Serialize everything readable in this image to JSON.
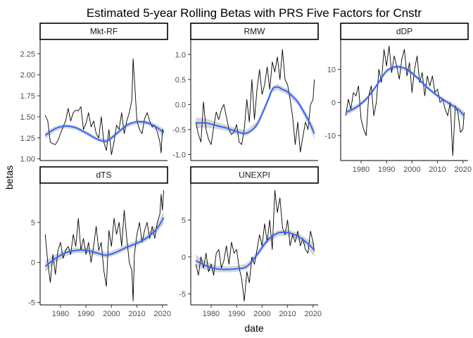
{
  "figure": {
    "title": "Estimated 5-year Rolling Betas with PRS Five Factors for Cnstr",
    "xlabel": "date",
    "ylabel": "betas",
    "colors": {
      "raw_line": "#000000",
      "smooth_line": "#3366ff",
      "confidence_band": "#c8c8c8",
      "strip_fill": "#ffffff",
      "axis": "#333333"
    }
  },
  "chart_data": [
    {
      "type": "line",
      "panel": "Mkt-RF",
      "xlim": [
        1972,
        2022
      ],
      "ylim": [
        0.98,
        2.42
      ],
      "x_ticks": [],
      "y_ticks": [
        1.0,
        1.25,
        1.5,
        1.75,
        2.0,
        2.25
      ],
      "y_tick_labels": [
        "1.00",
        "1.25",
        "1.50",
        "1.75",
        "2.00",
        "2.25"
      ],
      "raw": {
        "x": [
          1974.0,
          1975.0,
          1976.0,
          1977.0,
          1978.0,
          1979.0,
          1980.0,
          1981.0,
          1982.0,
          1983.0,
          1984.0,
          1985.0,
          1986.0,
          1987.0,
          1988.0,
          1989.0,
          1990.0,
          1991.0,
          1992.0,
          1993.0,
          1994.0,
          1995.0,
          1996.0,
          1997.0,
          1998.0,
          1999.0,
          2000.0,
          2001.0,
          2002.0,
          2003.0,
          2004.0,
          2005.0,
          2006.0,
          2007.0,
          2008.0,
          2008.5,
          2009.0,
          2010.0,
          2011.0,
          2012.0,
          2013.0,
          2014.0,
          2015.0,
          2016.0,
          2017.0,
          2018.0,
          2019.0,
          2019.5,
          2020.0,
          2020.5
        ],
        "y": [
          1.52,
          1.45,
          1.2,
          1.18,
          1.17,
          1.22,
          1.3,
          1.38,
          1.45,
          1.6,
          1.45,
          1.55,
          1.58,
          1.57,
          1.62,
          1.35,
          1.42,
          1.55,
          1.38,
          1.45,
          1.3,
          1.25,
          1.5,
          1.2,
          1.1,
          1.35,
          1.05,
          1.2,
          1.4,
          1.35,
          1.55,
          1.3,
          1.45,
          1.55,
          1.7,
          2.19,
          1.95,
          1.45,
          1.35,
          1.3,
          1.48,
          1.55,
          1.45,
          1.38,
          1.4,
          1.32,
          1.2,
          1.07,
          1.35,
          1.32
        ]
      },
      "smooth": {
        "x": [
          1974,
          1978,
          1982,
          1986,
          1990,
          1994,
          1998,
          2002,
          2006,
          2010,
          2014,
          2018,
          2020.5
        ],
        "y": [
          1.28,
          1.36,
          1.39,
          1.37,
          1.31,
          1.24,
          1.21,
          1.3,
          1.4,
          1.44,
          1.43,
          1.37,
          1.31
        ],
        "band": [
          0.04,
          0.03,
          0.025,
          0.025,
          0.025,
          0.025,
          0.025,
          0.025,
          0.025,
          0.025,
          0.025,
          0.035,
          0.05
        ]
      }
    },
    {
      "type": "line",
      "panel": "RMW",
      "xlim": [
        1972,
        2022
      ],
      "ylim": [
        -1.12,
        1.3
      ],
      "x_ticks": [],
      "y_ticks": [
        -1.0,
        -0.5,
        0.0,
        0.5,
        1.0
      ],
      "y_tick_labels": [
        "-1.0",
        "-0.5",
        "0.0",
        "0.5",
        "1.0"
      ],
      "raw": {
        "x": [
          1974.0,
          1975.0,
          1976.0,
          1977.0,
          1978.0,
          1979.0,
          1980.0,
          1981.0,
          1982.0,
          1983.0,
          1984.0,
          1985.0,
          1986.0,
          1987.0,
          1988.0,
          1989.0,
          1990.0,
          1991.0,
          1992.0,
          1993.0,
          1994.0,
          1995.0,
          1996.0,
          1997.0,
          1998.0,
          1999.0,
          2000.0,
          2001.0,
          2002.0,
          2003.0,
          2004.0,
          2005.0,
          2006.0,
          2007.0,
          2008.0,
          2009.0,
          2010.0,
          2011.0,
          2012.0,
          2013.0,
          2014.0,
          2015.0,
          2016.0,
          2017.0,
          2018.0,
          2019.0,
          2020.0,
          2020.5
        ],
        "y": [
          -0.35,
          -0.6,
          -0.75,
          0.05,
          -0.5,
          -0.7,
          -0.8,
          -0.45,
          -0.15,
          -0.3,
          -0.1,
          0.0,
          -0.25,
          -0.5,
          -0.6,
          -0.55,
          -0.4,
          -0.75,
          -0.8,
          -0.5,
          0.1,
          -0.35,
          0.5,
          -0.3,
          0.3,
          0.7,
          0.2,
          0.4,
          0.75,
          0.3,
          0.85,
          0.65,
          0.95,
          0.5,
          1.1,
          0.5,
          0.4,
          0.1,
          -0.25,
          -0.8,
          -0.35,
          -0.95,
          -0.65,
          -0.35,
          -0.5,
          0.0,
          0.1,
          0.5
        ]
      },
      "smooth": {
        "x": [
          1974,
          1978,
          1982,
          1986,
          1990,
          1994,
          1998,
          2002,
          2004,
          2006,
          2008,
          2010,
          2014,
          2018,
          2020.5
        ],
        "y": [
          -0.37,
          -0.37,
          -0.42,
          -0.47,
          -0.54,
          -0.57,
          -0.4,
          0.05,
          0.3,
          0.35,
          0.3,
          0.25,
          0.05,
          -0.3,
          -0.58
        ],
        "band": [
          0.11,
          0.09,
          0.07,
          0.06,
          0.06,
          0.06,
          0.06,
          0.06,
          0.06,
          0.06,
          0.06,
          0.06,
          0.06,
          0.08,
          0.12
        ]
      }
    },
    {
      "type": "line",
      "panel": "dDP",
      "xlim": [
        1972,
        2022
      ],
      "ylim": [
        -17.5,
        19
      ],
      "x_ticks": [
        1980,
        1990,
        2000,
        2010,
        2020
      ],
      "x_tick_labels": [
        "1980",
        "1990",
        "2000",
        "2010",
        "2020"
      ],
      "y_ticks": [
        -10,
        0,
        10
      ],
      "y_tick_labels": [
        "-10",
        "0",
        "10"
      ],
      "raw": {
        "x": [
          1974.0,
          1975.0,
          1976.0,
          1977.0,
          1978.0,
          1979.0,
          1980.0,
          1981.0,
          1982.0,
          1983.0,
          1984.0,
          1985.0,
          1986.0,
          1987.0,
          1988.0,
          1989.0,
          1990.0,
          1991.0,
          1992.0,
          1993.0,
          1994.0,
          1995.0,
          1996.0,
          1997.0,
          1998.0,
          1999.0,
          2000.0,
          2001.0,
          2002.0,
          2003.0,
          2004.0,
          2005.0,
          2006.0,
          2007.0,
          2008.0,
          2009.0,
          2010.0,
          2011.0,
          2012.0,
          2013.0,
          2014.0,
          2015.0,
          2016.0,
          2017.0,
          2018.0,
          2019.0,
          2020.0,
          2020.5
        ],
        "y": [
          -4.0,
          1.0,
          -2.0,
          3.0,
          2.0,
          5.0,
          -5.0,
          -8.0,
          -10.0,
          2.0,
          5.0,
          -4.0,
          0.0,
          10.0,
          6.0,
          16.0,
          11.0,
          17.0,
          9.0,
          14.0,
          11.0,
          7.0,
          13.0,
          16.0,
          8.0,
          12.0,
          3.0,
          10.0,
          14.0,
          6.0,
          9.0,
          2.0,
          8.0,
          5.0,
          8.0,
          3.0,
          4.0,
          0.0,
          1.0,
          -2.0,
          -4.0,
          0.0,
          -16.0,
          -1.0,
          -3.0,
          -9.0,
          -8.0,
          -3.0
        ]
      },
      "smooth": {
        "x": [
          1974,
          1978,
          1982,
          1986,
          1990,
          1994,
          1998,
          2002,
          2006,
          2010,
          2014,
          2018,
          2020.5
        ],
        "y": [
          -3.0,
          -1.5,
          1.0,
          5.0,
          9.5,
          10.8,
          10.0,
          7.5,
          4.5,
          2.0,
          0.0,
          -2.0,
          -4.0
        ],
        "band": [
          1.0,
          0.8,
          0.6,
          0.6,
          0.6,
          0.6,
          0.6,
          0.6,
          0.6,
          0.6,
          0.7,
          0.9,
          1.4
        ]
      }
    },
    {
      "type": "line",
      "panel": "dTS",
      "xlim": [
        1972,
        2022
      ],
      "ylim": [
        -5.3,
        9.9
      ],
      "x_ticks": [
        1980,
        1990,
        2000,
        2010,
        2020
      ],
      "x_tick_labels": [
        "1980",
        "1990",
        "2000",
        "2010",
        "2020"
      ],
      "y_ticks": [
        -5,
        0,
        5
      ],
      "y_tick_labels": [
        "-5",
        "0",
        "5"
      ],
      "raw": {
        "x": [
          1974.0,
          1975.0,
          1976.0,
          1977.0,
          1978.0,
          1979.0,
          1980.0,
          1981.0,
          1982.0,
          1983.0,
          1984.0,
          1985.0,
          1986.0,
          1987.0,
          1988.0,
          1989.0,
          1990.0,
          1991.0,
          1992.0,
          1993.0,
          1994.0,
          1995.0,
          1996.0,
          1997.0,
          1998.0,
          1999.0,
          2000.0,
          2001.0,
          2002.0,
          2003.0,
          2004.0,
          2005.0,
          2006.0,
          2007.0,
          2008.0,
          2008.5,
          2009.0,
          2010.0,
          2011.0,
          2012.0,
          2013.0,
          2014.0,
          2015.0,
          2016.0,
          2017.0,
          2018.0,
          2019.0,
          2019.5,
          2020.0,
          2020.5
        ],
        "y": [
          3.5,
          0.0,
          -2.5,
          1.0,
          -1.5,
          1.5,
          2.5,
          0.5,
          1.5,
          2.0,
          1.0,
          3.5,
          2.0,
          5.5,
          1.5,
          3.0,
          1.0,
          2.5,
          0.0,
          2.0,
          4.5,
          1.5,
          2.5,
          -1.0,
          -3.0,
          4.0,
          2.0,
          5.5,
          3.5,
          5.0,
          2.0,
          6.5,
          3.0,
          0.0,
          -1.0,
          -4.8,
          1.0,
          3.5,
          5.0,
          2.5,
          4.0,
          5.0,
          3.0,
          4.5,
          3.0,
          5.0,
          6.0,
          8.5,
          6.5,
          9.0
        ]
      },
      "smooth": {
        "x": [
          1974,
          1978,
          1982,
          1986,
          1990,
          1994,
          1998,
          2002,
          2006,
          2010,
          2014,
          2018,
          2020.5
        ],
        "y": [
          -0.5,
          0.5,
          1.2,
          1.5,
          1.5,
          1.2,
          0.9,
          1.3,
          1.9,
          2.4,
          3.1,
          4.3,
          5.6
        ],
        "band": [
          0.7,
          0.5,
          0.4,
          0.35,
          0.35,
          0.35,
          0.35,
          0.35,
          0.35,
          0.35,
          0.4,
          0.5,
          0.8
        ]
      }
    },
    {
      "type": "line",
      "panel": "UNEXPI",
      "xlim": [
        1972,
        2022
      ],
      "ylim": [
        -6.5,
        10
      ],
      "x_ticks": [
        1980,
        1990,
        2000,
        2010,
        2020
      ],
      "x_tick_labels": [
        "1980",
        "1990",
        "2000",
        "2010",
        "2020"
      ],
      "y_ticks": [
        -5,
        0,
        5
      ],
      "y_tick_labels": [
        "-5",
        "0",
        "5"
      ],
      "raw": {
        "x": [
          1974.0,
          1975.0,
          1976.0,
          1977.0,
          1978.0,
          1979.0,
          1980.0,
          1981.0,
          1982.0,
          1983.0,
          1984.0,
          1985.0,
          1986.0,
          1987.0,
          1988.0,
          1989.0,
          1990.0,
          1991.0,
          1992.0,
          1993.0,
          1994.0,
          1995.0,
          1996.0,
          1997.0,
          1998.0,
          1999.0,
          2000.0,
          2001.0,
          2002.0,
          2003.0,
          2004.0,
          2005.0,
          2006.0,
          2007.0,
          2008.0,
          2009.0,
          2010.0,
          2011.0,
          2012.0,
          2013.0,
          2014.0,
          2015.0,
          2016.0,
          2017.0,
          2018.0,
          2019.0,
          2020.0,
          2020.5
        ],
        "y": [
          -1.0,
          -2.5,
          0.0,
          -1.5,
          0.5,
          -2.0,
          -1.0,
          -2.5,
          0.5,
          1.0,
          -1.5,
          -0.5,
          1.5,
          -1.0,
          2.0,
          0.5,
          1.0,
          -1.5,
          -3.0,
          -6.0,
          -2.0,
          -3.5,
          0.0,
          -1.0,
          1.0,
          3.0,
          1.5,
          4.5,
          2.0,
          5.0,
          1.0,
          9.0,
          6.0,
          8.0,
          4.0,
          3.0,
          5.0,
          1.5,
          3.0,
          2.0,
          3.5,
          1.5,
          2.5,
          1.0,
          0.5,
          3.5,
          2.0,
          0.8
        ]
      },
      "smooth": {
        "x": [
          1974,
          1978,
          1982,
          1986,
          1990,
          1994,
          1998,
          2002,
          2006,
          2010,
          2014,
          2018,
          2020.5
        ],
        "y": [
          -0.5,
          -1.2,
          -1.6,
          -1.7,
          -1.6,
          -1.3,
          0.3,
          2.2,
          3.2,
          3.3,
          2.8,
          1.8,
          0.9
        ],
        "band": [
          0.8,
          0.6,
          0.45,
          0.4,
          0.4,
          0.4,
          0.4,
          0.4,
          0.4,
          0.4,
          0.45,
          0.6,
          0.9
        ]
      }
    }
  ]
}
